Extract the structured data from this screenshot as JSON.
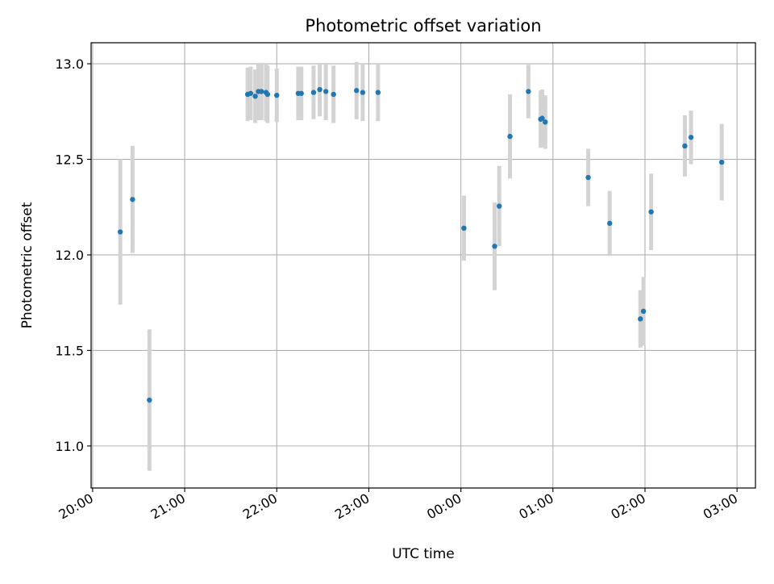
{
  "chart_data": {
    "type": "scatter",
    "title": "Photometric offset variation",
    "xlabel": "UTC time",
    "ylabel": "Photometric offset",
    "x_tick_labels": [
      "20:00",
      "21:00",
      "22:00",
      "23:00",
      "00:00",
      "01:00",
      "02:00",
      "03:00"
    ],
    "y_tick_labels": [
      "11.0",
      "11.5",
      "12.0",
      "12.5",
      "13.0"
    ],
    "y_ticks": [
      11.0,
      11.5,
      12.0,
      12.5,
      13.0
    ],
    "ylim": [
      10.78,
      13.11
    ],
    "xlim": [
      "19:59",
      "03:12"
    ],
    "grid": true,
    "colors": {
      "point": "#1f77b4",
      "errorbar": "#d3d3d3",
      "grid": "#b0b0b0"
    },
    "series": [
      {
        "points": [
          {
            "x": "20:18",
            "y": 12.12,
            "err": 0.38
          },
          {
            "x": "20:26",
            "y": 12.29,
            "err": 0.28
          },
          {
            "x": "20:37",
            "y": 11.24,
            "err": 0.37
          },
          {
            "x": "21:41",
            "y": 12.84,
            "err": 0.14
          },
          {
            "x": "21:43",
            "y": 12.845,
            "err": 0.14
          },
          {
            "x": "21:46",
            "y": 12.83,
            "err": 0.14
          },
          {
            "x": "21:48",
            "y": 12.855,
            "err": 0.15
          },
          {
            "x": "21:50",
            "y": 12.855,
            "err": 0.15
          },
          {
            "x": "21:53",
            "y": 12.85,
            "err": 0.15
          },
          {
            "x": "21:54",
            "y": 12.84,
            "err": 0.15
          },
          {
            "x": "22:00",
            "y": 12.835,
            "err": 0.14
          },
          {
            "x": "22:14",
            "y": 12.845,
            "err": 0.14
          },
          {
            "x": "22:16",
            "y": 12.845,
            "err": 0.14
          },
          {
            "x": "22:24",
            "y": 12.85,
            "err": 0.14
          },
          {
            "x": "22:28",
            "y": 12.865,
            "err": 0.14
          },
          {
            "x": "22:32",
            "y": 12.855,
            "err": 0.15
          },
          {
            "x": "22:37",
            "y": 12.84,
            "err": 0.15
          },
          {
            "x": "22:52",
            "y": 12.86,
            "err": 0.15
          },
          {
            "x": "22:56",
            "y": 12.85,
            "err": 0.15
          },
          {
            "x": "23:06",
            "y": 12.85,
            "err": 0.15
          },
          {
            "x": "00:02",
            "y": 12.14,
            "err": 0.17
          },
          {
            "x": "00:22",
            "y": 12.045,
            "err": 0.23
          },
          {
            "x": "00:25",
            "y": 12.255,
            "err": 0.21
          },
          {
            "x": "00:32",
            "y": 12.62,
            "err": 0.22
          },
          {
            "x": "00:44",
            "y": 12.855,
            "err": 0.14
          },
          {
            "x": "00:52",
            "y": 12.71,
            "err": 0.15
          },
          {
            "x": "00:53",
            "y": 12.715,
            "err": 0.15
          },
          {
            "x": "00:55",
            "y": 12.695,
            "err": 0.14
          },
          {
            "x": "01:23",
            "y": 12.405,
            "err": 0.15
          },
          {
            "x": "01:37",
            "y": 12.165,
            "err": 0.17
          },
          {
            "x": "01:57",
            "y": 11.665,
            "err": 0.15
          },
          {
            "x": "01:59",
            "y": 11.705,
            "err": 0.18
          },
          {
            "x": "02:04",
            "y": 12.225,
            "err": 0.2
          },
          {
            "x": "02:26",
            "y": 12.57,
            "err": 0.16
          },
          {
            "x": "02:30",
            "y": 12.615,
            "err": 0.14
          },
          {
            "x": "02:50",
            "y": 12.485,
            "err": 0.2
          }
        ]
      }
    ]
  }
}
